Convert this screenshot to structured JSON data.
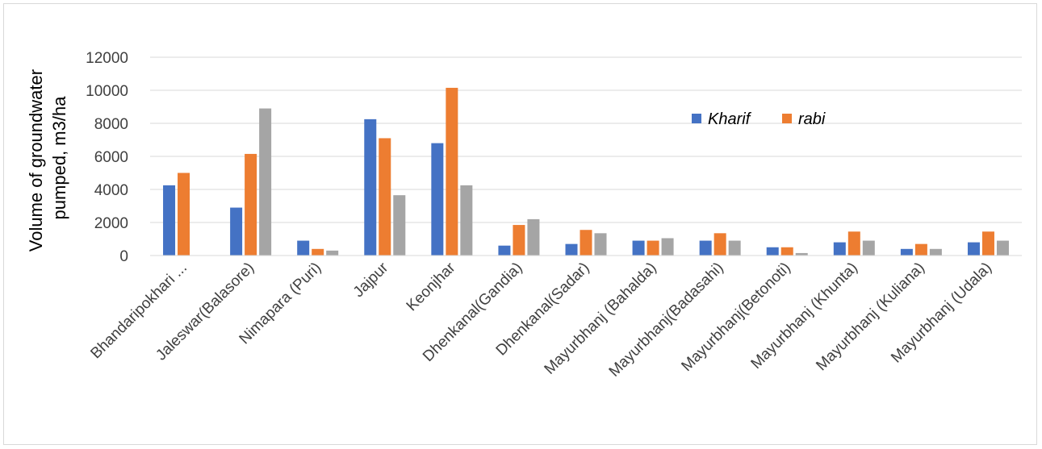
{
  "chart_data": {
    "type": "bar",
    "ylabel_line1": "Volume of groundwater",
    "ylabel_line2": "pumped, m3/ha",
    "ylim": [
      0,
      12000
    ],
    "yticks": [
      0,
      2000,
      4000,
      6000,
      8000,
      10000,
      12000
    ],
    "grid": true,
    "legend_position": "upper-right inside plot",
    "categories": [
      "Bhandaripokhari ...",
      "Jaleswar(Balasore)",
      "Nimapara (Puri)",
      "Jajpur",
      "Keonjhar",
      "Dhenkanal(Gandia)",
      "Dhenkanal(Sadar)",
      "Mayurbhanj (Bahalda)",
      "Mayurbhanj(Badasahi)",
      "Mayurbhanj(Betonoti)",
      "Mayurbhanj (Khunta)",
      "Mayurbhanj (Kuliana)",
      "Mayurbhanj (Udala)"
    ],
    "series": [
      {
        "name": "Kharif",
        "color": "#4472c4",
        "in_legend": true,
        "values": [
          4250,
          2900,
          900,
          8250,
          6800,
          600,
          700,
          900,
          900,
          500,
          800,
          400,
          800
        ]
      },
      {
        "name": "rabi",
        "color": "#ed7d31",
        "in_legend": true,
        "values": [
          5000,
          6150,
          400,
          7100,
          10150,
          1850,
          1550,
          900,
          1350,
          500,
          1450,
          700,
          1450
        ]
      },
      {
        "color": "#a5a5a5",
        "in_legend": false,
        "values": [
          0,
          8900,
          300,
          3650,
          4250,
          2200,
          1350,
          1050,
          900,
          150,
          900,
          400,
          900
        ]
      }
    ]
  }
}
